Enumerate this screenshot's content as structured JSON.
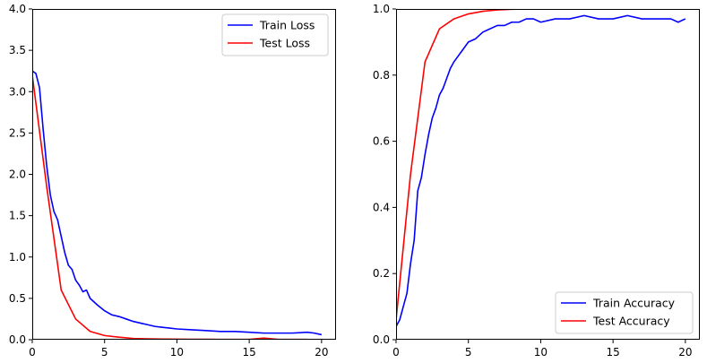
{
  "chart_data": [
    {
      "type": "line",
      "title": "",
      "xlabel": "",
      "ylabel": "",
      "xlim": [
        0,
        21
      ],
      "ylim": [
        0,
        4.0
      ],
      "xticks": [
        "0",
        "5",
        "10",
        "15",
        "20"
      ],
      "yticks": [
        "0.0",
        "0.5",
        "1.0",
        "1.5",
        "2.0",
        "2.5",
        "3.0",
        "3.5",
        "4.0"
      ],
      "legend_position": "top-right",
      "series": [
        {
          "name": "Train Loss",
          "color": "#0000ff",
          "x": [
            0,
            0.25,
            0.5,
            0.75,
            1,
            1.25,
            1.5,
            1.75,
            2,
            2.25,
            2.5,
            2.75,
            3,
            3.25,
            3.5,
            3.75,
            4,
            4.5,
            5,
            5.5,
            6,
            6.5,
            7,
            7.5,
            8,
            8.5,
            9,
            9.5,
            10,
            11,
            12,
            13,
            14,
            15,
            16,
            17,
            18,
            19,
            19.5,
            20
          ],
          "values": [
            3.25,
            3.22,
            3.05,
            2.55,
            2.1,
            1.75,
            1.55,
            1.45,
            1.25,
            1.05,
            0.9,
            0.85,
            0.72,
            0.66,
            0.58,
            0.6,
            0.5,
            0.42,
            0.35,
            0.3,
            0.28,
            0.25,
            0.22,
            0.2,
            0.18,
            0.16,
            0.15,
            0.14,
            0.13,
            0.12,
            0.11,
            0.1,
            0.1,
            0.09,
            0.08,
            0.08,
            0.08,
            0.09,
            0.08,
            0.06
          ]
        },
        {
          "name": "Test Loss",
          "color": "#ff0000",
          "x": [
            0,
            1,
            2,
            3,
            4,
            5,
            6,
            7,
            8,
            9,
            10,
            11,
            12,
            13,
            14,
            15,
            16,
            17,
            18,
            19
          ],
          "values": [
            3.2,
            1.85,
            0.6,
            0.25,
            0.1,
            0.05,
            0.03,
            0.015,
            0.01,
            0.008,
            0.006,
            0.005,
            0.005,
            0.004,
            0.004,
            0.004,
            0.02,
            0.004,
            0.004,
            0.004
          ]
        }
      ]
    },
    {
      "type": "line",
      "title": "",
      "xlabel": "",
      "ylabel": "",
      "xlim": [
        0,
        21
      ],
      "ylim": [
        0,
        1.0
      ],
      "xticks": [
        "0",
        "5",
        "10",
        "15",
        "20"
      ],
      "yticks": [
        "0.0",
        "0.2",
        "0.4",
        "0.6",
        "0.8",
        "1.0"
      ],
      "legend_position": "bottom-right",
      "series": [
        {
          "name": "Train Accuracy",
          "color": "#0000ff",
          "x": [
            0,
            0.25,
            0.5,
            0.75,
            1,
            1.25,
            1.5,
            1.75,
            2,
            2.25,
            2.5,
            2.75,
            3,
            3.25,
            3.5,
            3.75,
            4,
            4.5,
            5,
            5.5,
            6,
            6.5,
            7,
            7.5,
            8,
            8.5,
            9,
            9.5,
            10,
            11,
            12,
            13,
            14,
            15,
            16,
            17,
            18,
            19,
            19.5,
            20
          ],
          "values": [
            0.04,
            0.06,
            0.1,
            0.14,
            0.23,
            0.3,
            0.45,
            0.49,
            0.56,
            0.62,
            0.67,
            0.7,
            0.74,
            0.76,
            0.79,
            0.82,
            0.84,
            0.87,
            0.9,
            0.91,
            0.93,
            0.94,
            0.95,
            0.95,
            0.96,
            0.96,
            0.97,
            0.97,
            0.96,
            0.97,
            0.97,
            0.98,
            0.97,
            0.97,
            0.98,
            0.97,
            0.97,
            0.97,
            0.96,
            0.97
          ]
        },
        {
          "name": "Test Accuracy",
          "color": "#ff0000",
          "x": [
            0,
            1,
            2,
            3,
            4,
            5,
            6,
            7,
            8,
            9,
            10,
            11,
            12,
            13,
            14,
            15,
            16,
            17,
            18,
            19
          ],
          "values": [
            0.06,
            0.5,
            0.84,
            0.94,
            0.97,
            0.985,
            0.993,
            0.997,
            0.999,
            1.0,
            1.0,
            1.0,
            1.0,
            1.0,
            1.0,
            1.0,
            1.0,
            1.0,
            1.0,
            1.0
          ]
        }
      ]
    }
  ]
}
